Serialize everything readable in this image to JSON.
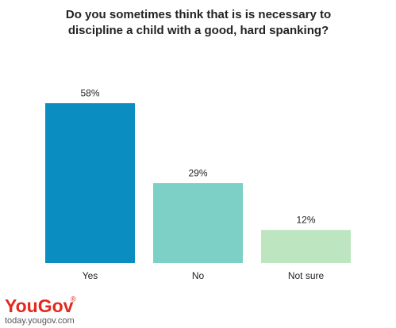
{
  "chart_data": {
    "type": "bar",
    "title": [
      "Do you sometimes think that is is necessary to",
      "discipline a child with a good, hard spanking?"
    ],
    "categories": [
      "Yes",
      "No",
      "Not sure"
    ],
    "values": [
      58,
      29,
      12
    ],
    "value_labels": [
      "58%",
      "29%",
      "12%"
    ],
    "colors": [
      "#0a8dc0",
      "#7dd0c6",
      "#bde6c0"
    ]
  },
  "footer": {
    "logo": "YouGov",
    "registered": "®",
    "url": "today.yougov.com"
  }
}
